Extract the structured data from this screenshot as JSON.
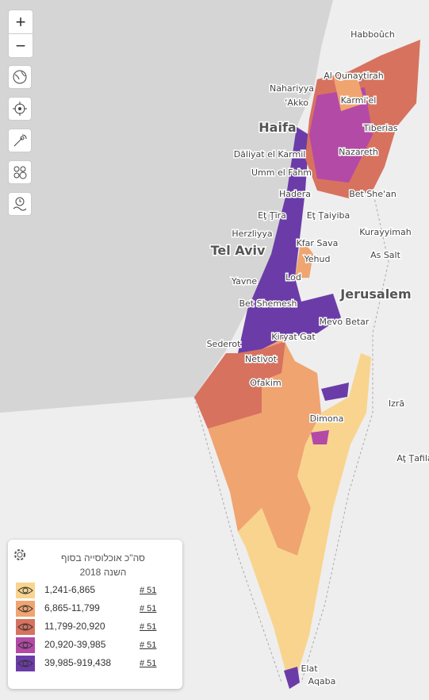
{
  "controls": {
    "zoom_in": "+",
    "zoom_out": "−"
  },
  "map_labels": [
    "Habboûch",
    "Nahariyya",
    "‘Akko",
    "Al Qunaytirah",
    "Haifa",
    "Karmi'el",
    "Tiberias",
    "Dāliyat el Karmil",
    "Nazareth",
    "Umm el Fahm",
    "Hadera",
    "Bet She'an",
    "Eţ Ţīra",
    "Eţ Ţaiyiba",
    "Herzliyya",
    "Kfar Sava",
    "Kurayyimah",
    "Tel Aviv",
    "Yehud",
    "As Salt",
    "Lod",
    "Yavne",
    "Jerusalem",
    "Bet Shemesh",
    "Mevo Betar",
    "Sederot",
    "Kiryat Gat",
    "Netivot",
    "Ofakim",
    "Izrā",
    "Dimona",
    "Aţ Ţafila",
    "Elat",
    "Aqaba"
  ],
  "legend": {
    "title": "סה\"כ אוכלוסייה בסוף השנה 2018",
    "items": [
      {
        "range": "1,241-6,865",
        "count": "# 51",
        "color": "#f9d48e"
      },
      {
        "range": "6,865-11,799",
        "count": "# 51",
        "color": "#f0a470"
      },
      {
        "range": "11,799-20,920",
        "count": "# 51",
        "color": "#d7725f"
      },
      {
        "range": "20,920-39,985",
        "count": "# 51",
        "color": "#b34aa6"
      },
      {
        "range": "39,985-919,438",
        "count": "# 51",
        "color": "#6b3ca8"
      }
    ]
  }
}
